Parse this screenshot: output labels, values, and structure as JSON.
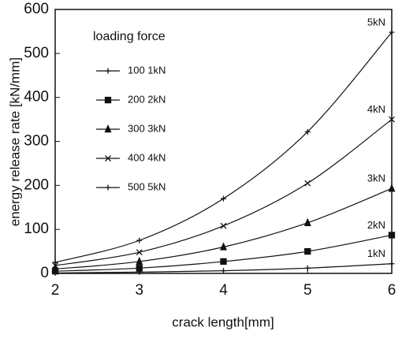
{
  "chart_data": {
    "type": "line",
    "xlabel": "crack length[mm]",
    "ylabel": "energy release rate [kN/mm]",
    "legend_title": "loading force",
    "x": [
      2,
      3,
      4,
      5,
      6
    ],
    "xlim": [
      2,
      6
    ],
    "xticks": [
      2,
      3,
      4,
      5,
      6
    ],
    "ylim": [
      0,
      600
    ],
    "yticks": [
      0,
      100,
      200,
      300,
      400,
      500,
      600
    ],
    "series": [
      {
        "name": "100 1kN",
        "end_label": "1kN",
        "color": "#111111",
        "marker": "plus",
        "values": [
          1,
          3,
          6,
          12,
          22
        ]
      },
      {
        "name": "200 2kN",
        "end_label": "2kN",
        "color": "#111111",
        "marker": "square",
        "values": [
          5,
          12,
          27,
          50,
          87
        ]
      },
      {
        "name": "300 3kN",
        "end_label": "3kN",
        "color": "#111111",
        "marker": "triangle",
        "values": [
          10,
          27,
          60,
          115,
          193
        ]
      },
      {
        "name": "400 4kN",
        "end_label": "4kN",
        "color": "#111111",
        "marker": "cross",
        "values": [
          18,
          48,
          108,
          205,
          350
        ]
      },
      {
        "name": "500 5kN",
        "end_label": "5kN",
        "color": "#111111",
        "marker": "plus",
        "values": [
          25,
          75,
          170,
          322,
          548
        ]
      }
    ]
  }
}
